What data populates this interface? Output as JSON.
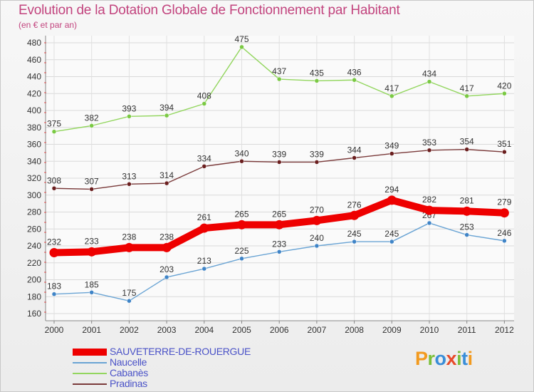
{
  "title": "Evolution de la Dotation Globale de Fonctionnement par Habitant",
  "subtitle": "(en € et par an)",
  "logo": {
    "text": "Proxiti",
    "letters": [
      {
        "ch": "P",
        "color": "#f29a1f"
      },
      {
        "ch": "r",
        "color": "#7bbf3a"
      },
      {
        "ch": "o",
        "color": "#3a8ed8"
      },
      {
        "ch": "x",
        "color": "#e84a2a"
      },
      {
        "ch": "i",
        "color": "#7bbf3a"
      },
      {
        "ch": "t",
        "color": "#3a8ed8"
      },
      {
        "ch": "i",
        "color": "#f29a1f"
      }
    ]
  },
  "chart_data": {
    "type": "line",
    "title": "Evolution de la Dotation Globale de Fonctionnement par Habitant",
    "subtitle": "(en € et par an)",
    "xlabel": "",
    "ylabel": "",
    "x": [
      "2000",
      "2001",
      "2002",
      "2003",
      "2004",
      "2005",
      "2006",
      "2007",
      "2008",
      "2009",
      "2010",
      "2011",
      "2012"
    ],
    "ylim": [
      160,
      480
    ],
    "yticks": [
      160,
      180,
      200,
      220,
      240,
      260,
      280,
      300,
      320,
      340,
      360,
      380,
      400,
      420,
      440,
      460,
      480
    ],
    "grid": true,
    "legend_position": "bottom-left",
    "series": [
      {
        "name": "Cabanès",
        "color": "#93d65f",
        "point_color": "#7ac943",
        "emphasis": false,
        "values": [
          375,
          382,
          393,
          394,
          408,
          475,
          437,
          435,
          436,
          417,
          434,
          417,
          420
        ]
      },
      {
        "name": "Pradinas",
        "color": "#7a3a3a",
        "point_color": "#6b1f1f",
        "emphasis": false,
        "values": [
          308,
          307,
          313,
          314,
          334,
          340,
          339,
          339,
          344,
          349,
          353,
          354,
          351
        ]
      },
      {
        "name": "Naucelle",
        "color": "#6aa4d4",
        "point_color": "#3f84c7",
        "emphasis": false,
        "values": [
          183,
          185,
          175,
          203,
          213,
          225,
          233,
          240,
          245,
          245,
          267,
          253,
          246
        ]
      },
      {
        "name": "SAUVETERRE-DE-ROUERGUE",
        "color": "#ee0000",
        "point_color": "#ee0000",
        "emphasis": true,
        "values": [
          232,
          233,
          238,
          238,
          261,
          265,
          265,
          270,
          276,
          294,
          282,
          281,
          279
        ]
      }
    ],
    "legend_order": [
      "SAUVETERRE-DE-ROUERGUE",
      "Naucelle",
      "Cabanès",
      "Pradinas"
    ]
  }
}
